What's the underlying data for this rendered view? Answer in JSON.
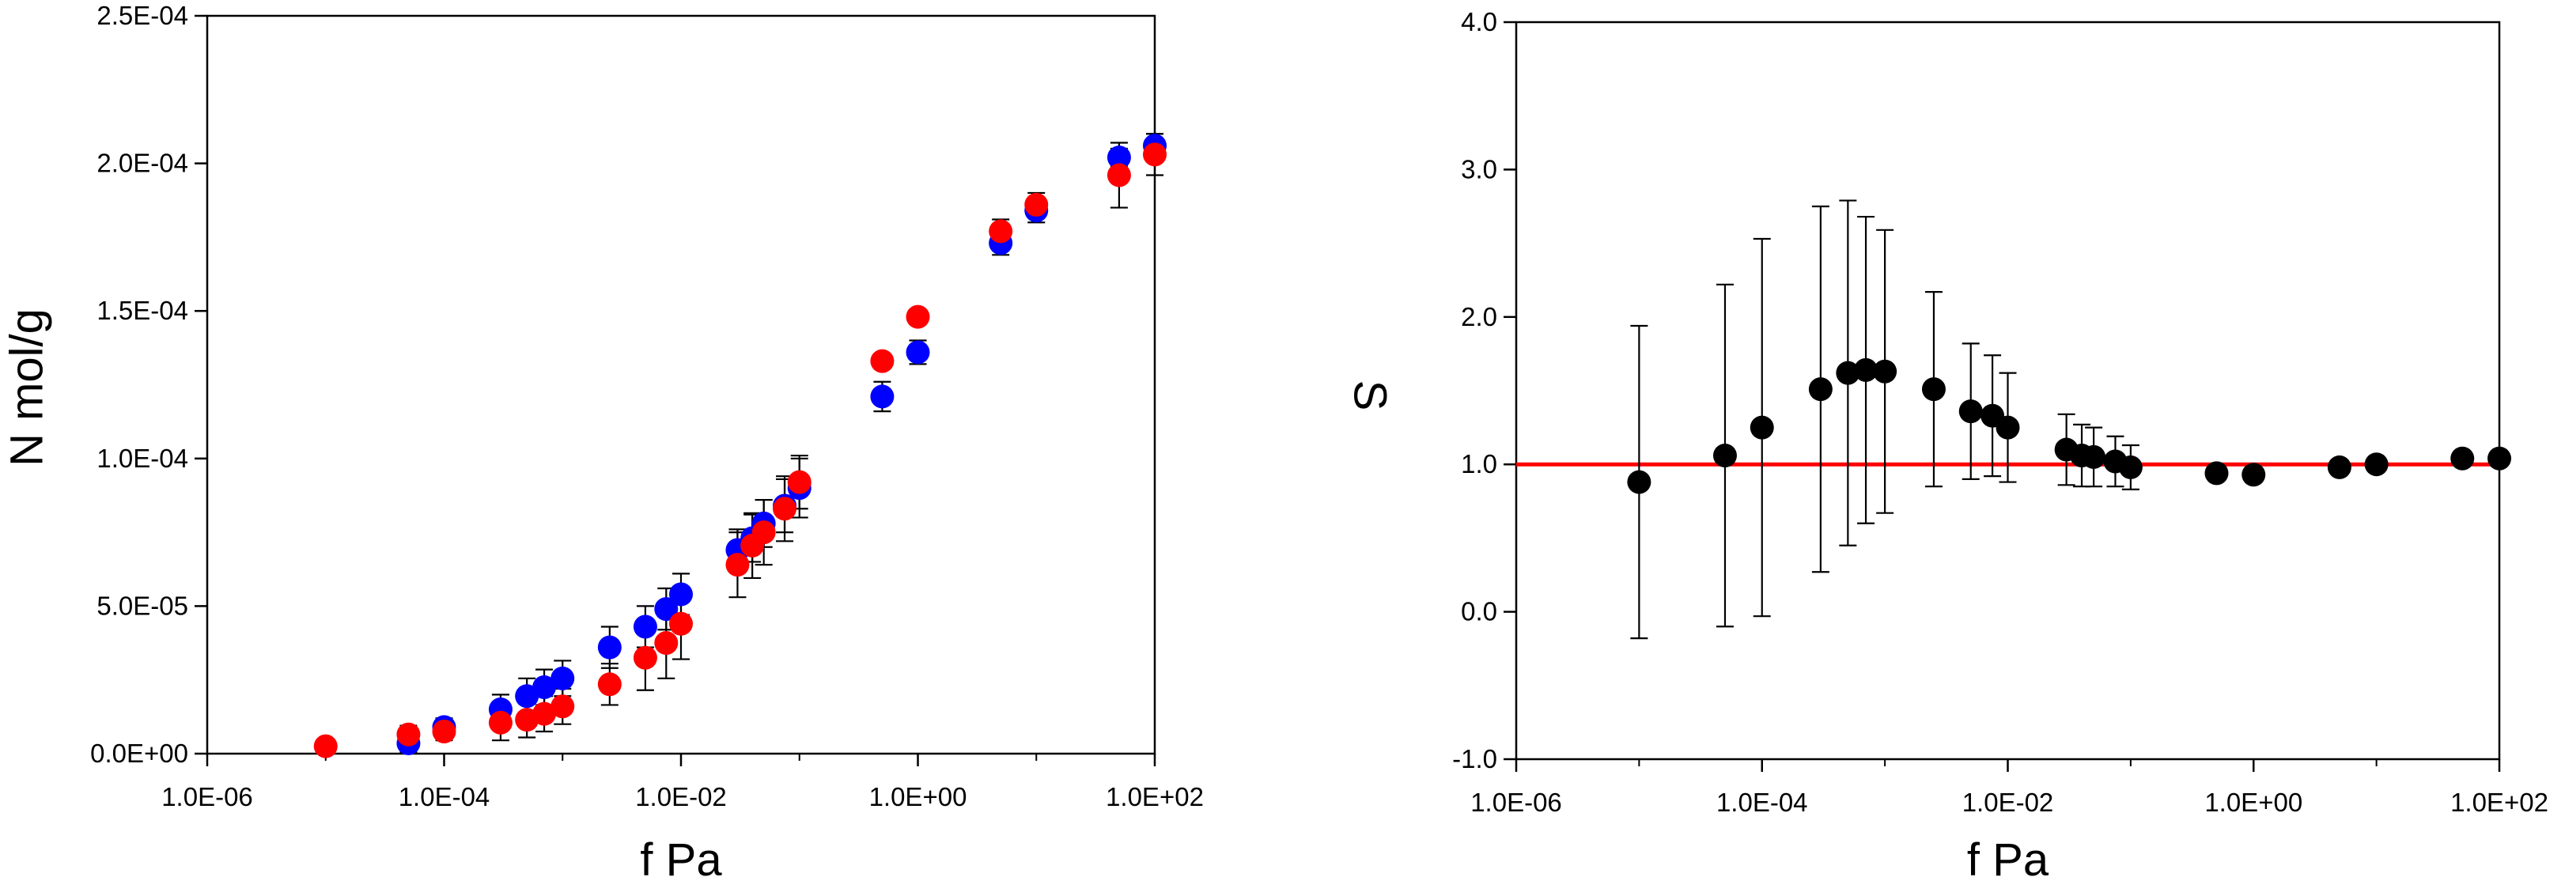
{
  "chart_data": [
    {
      "type": "scatter",
      "title": "",
      "xlabel": "f Pa",
      "ylabel": "N mol/g",
      "xscale": "log",
      "xlim": [
        1e-06,
        100
      ],
      "ylim": [
        0,
        0.00025
      ],
      "x_ticks": [
        {
          "value": 1e-06,
          "label": "1.0E-06"
        },
        {
          "value": 0.0001,
          "label": "1.0E-04"
        },
        {
          "value": 0.01,
          "label": "1.0E-02"
        },
        {
          "value": 1,
          "label": "1.0E+00"
        },
        {
          "value": 100,
          "label": "1.0E+02"
        }
      ],
      "y_ticks": [
        {
          "value": 0,
          "label": "0.0E+00"
        },
        {
          "value": 5e-05,
          "label": "5.0E-05"
        },
        {
          "value": 0.0001,
          "label": "1.0E-04"
        },
        {
          "value": 0.00015,
          "label": "1.5E-04"
        },
        {
          "value": 0.0002,
          "label": "2.0E-04"
        },
        {
          "value": 0.00025,
          "label": "2.5E-04"
        }
      ],
      "grid": false,
      "legend": "none",
      "series": [
        {
          "color": "#0000ff",
          "points": [
            {
              "x": 5e-05,
              "y": 3.5e-06,
              "err": 3e-06
            },
            {
              "x": 0.0001,
              "y": 9e-06,
              "err": 3e-06
            },
            {
              "x": 0.0003,
              "y": 1.5e-05,
              "err": 5e-06
            },
            {
              "x": 0.0005,
              "y": 1.95e-05,
              "err": 6e-06
            },
            {
              "x": 0.0007,
              "y": 2.25e-05,
              "err": 6e-06
            },
            {
              "x": 0.001,
              "y": 2.55e-05,
              "err": 6e-06
            },
            {
              "x": 0.0025,
              "y": 3.6e-05,
              "err": 7e-06
            },
            {
              "x": 0.005,
              "y": 4.3e-05,
              "err": 7e-06
            },
            {
              "x": 0.0075,
              "y": 4.9e-05,
              "err": 7e-06
            },
            {
              "x": 0.01,
              "y": 5.4e-05,
              "err": 7e-06
            },
            {
              "x": 0.03,
              "y": 6.9e-05,
              "err": 7e-06
            },
            {
              "x": 0.04,
              "y": 7.3e-05,
              "err": 8e-06
            },
            {
              "x": 0.05,
              "y": 7.8e-05,
              "err": 8e-06
            },
            {
              "x": 0.075,
              "y": 8.4e-05,
              "err": 9e-06
            },
            {
              "x": 0.1,
              "y": 9e-05,
              "err": 1e-05
            },
            {
              "x": 0.5,
              "y": 0.000121,
              "err": 5e-06
            },
            {
              "x": 1,
              "y": 0.000136,
              "err": 4e-06
            },
            {
              "x": 5,
              "y": 0.000173,
              "err": 4e-06
            },
            {
              "x": 10,
              "y": 0.000184,
              "err": 4e-06
            },
            {
              "x": 50,
              "y": 0.000202,
              "err": 3e-06
            },
            {
              "x": 100,
              "y": 0.000206,
              "err": 4e-06
            }
          ]
        },
        {
          "color": "#ff0000",
          "points": [
            {
              "x": 1e-05,
              "y": 2.5e-06,
              "err": 0
            },
            {
              "x": 5e-05,
              "y": 6.5e-06,
              "err": 3e-06
            },
            {
              "x": 0.0001,
              "y": 7.5e-06,
              "err": 3e-06
            },
            {
              "x": 0.0003,
              "y": 1.05e-05,
              "err": 6e-06
            },
            {
              "x": 0.0005,
              "y": 1.15e-05,
              "err": 6e-06
            },
            {
              "x": 0.0007,
              "y": 1.35e-05,
              "err": 6e-06
            },
            {
              "x": 0.001,
              "y": 1.6e-05,
              "err": 6e-06
            },
            {
              "x": 0.0025,
              "y": 2.35e-05,
              "err": 7e-06
            },
            {
              "x": 0.005,
              "y": 3.25e-05,
              "err": 1.1e-05
            },
            {
              "x": 0.0075,
              "y": 3.75e-05,
              "err": 1.2e-05
            },
            {
              "x": 0.01,
              "y": 4.4e-05,
              "err": 1.2e-05
            },
            {
              "x": 0.03,
              "y": 6.4e-05,
              "err": 1.1e-05
            },
            {
              "x": 0.04,
              "y": 7.05e-05,
              "err": 1.1e-05
            },
            {
              "x": 0.05,
              "y": 7.5e-05,
              "err": 1.1e-05
            },
            {
              "x": 0.075,
              "y": 8.3e-05,
              "err": 1.1e-05
            },
            {
              "x": 0.1,
              "y": 9.2e-05,
              "err": 9e-06
            },
            {
              "x": 0.5,
              "y": 0.000133,
              "err": 2e-06
            },
            {
              "x": 1,
              "y": 0.000148,
              "err": 2e-06
            },
            {
              "x": 5,
              "y": 0.000177,
              "err": 4e-06
            },
            {
              "x": 10,
              "y": 0.000186,
              "err": 4e-06
            },
            {
              "x": 50,
              "y": 0.000196,
              "err": 1.1e-05
            },
            {
              "x": 100,
              "y": 0.000203,
              "err": 7e-06
            }
          ]
        }
      ]
    },
    {
      "type": "scatter",
      "title": "",
      "xlabel": "f Pa",
      "ylabel": "S",
      "xscale": "log",
      "xlim": [
        1e-06,
        100
      ],
      "ylim": [
        -1,
        4
      ],
      "x_ticks": [
        {
          "value": 1e-06,
          "label": "1.0E-06"
        },
        {
          "value": 0.0001,
          "label": "1.0E-04"
        },
        {
          "value": 0.01,
          "label": "1.0E-02"
        },
        {
          "value": 1,
          "label": "1.0E+00"
        },
        {
          "value": 100,
          "label": "1.0E+02"
        }
      ],
      "y_ticks": [
        {
          "value": -1,
          "label": "-1.0"
        },
        {
          "value": 0,
          "label": "0.0"
        },
        {
          "value": 1,
          "label": "1.0"
        },
        {
          "value": 2,
          "label": "2.0"
        },
        {
          "value": 3,
          "label": "3.0"
        },
        {
          "value": 4,
          "label": "4.0"
        }
      ],
      "grid": false,
      "legend": "none",
      "reference_line": {
        "y": 1,
        "color": "#ff0000"
      },
      "series": [
        {
          "color": "#000000",
          "points": [
            {
              "x": 1e-05,
              "y": 0.88,
              "err": 1.06
            },
            {
              "x": 5e-05,
              "y": 1.06,
              "err": 1.16
            },
            {
              "x": 0.0001,
              "y": 1.25,
              "err": 1.28
            },
            {
              "x": 0.0003,
              "y": 1.51,
              "err": 1.24
            },
            {
              "x": 0.0005,
              "y": 1.62,
              "err": 1.17
            },
            {
              "x": 0.0007,
              "y": 1.64,
              "err": 1.04
            },
            {
              "x": 0.001,
              "y": 1.63,
              "err": 0.96
            },
            {
              "x": 0.0025,
              "y": 1.51,
              "err": 0.66
            },
            {
              "x": 0.005,
              "y": 1.36,
              "err": 0.46
            },
            {
              "x": 0.0075,
              "y": 1.33,
              "err": 0.41
            },
            {
              "x": 0.01,
              "y": 1.25,
              "err": 0.37
            },
            {
              "x": 0.03,
              "y": 1.1,
              "err": 0.24
            },
            {
              "x": 0.04,
              "y": 1.06,
              "err": 0.21
            },
            {
              "x": 0.05,
              "y": 1.05,
              "err": 0.2
            },
            {
              "x": 0.075,
              "y": 1.02,
              "err": 0.17
            },
            {
              "x": 0.1,
              "y": 0.98,
              "err": 0.15
            },
            {
              "x": 0.5,
              "y": 0.94,
              "err": 0.05
            },
            {
              "x": 1,
              "y": 0.93,
              "err": 0.04
            },
            {
              "x": 5,
              "y": 0.98,
              "err": 0.03
            },
            {
              "x": 10,
              "y": 1.0,
              "err": 0.02
            },
            {
              "x": 50,
              "y": 1.04,
              "err": 0.02
            },
            {
              "x": 100,
              "y": 1.04,
              "err": 0.02
            }
          ]
        }
      ]
    }
  ]
}
